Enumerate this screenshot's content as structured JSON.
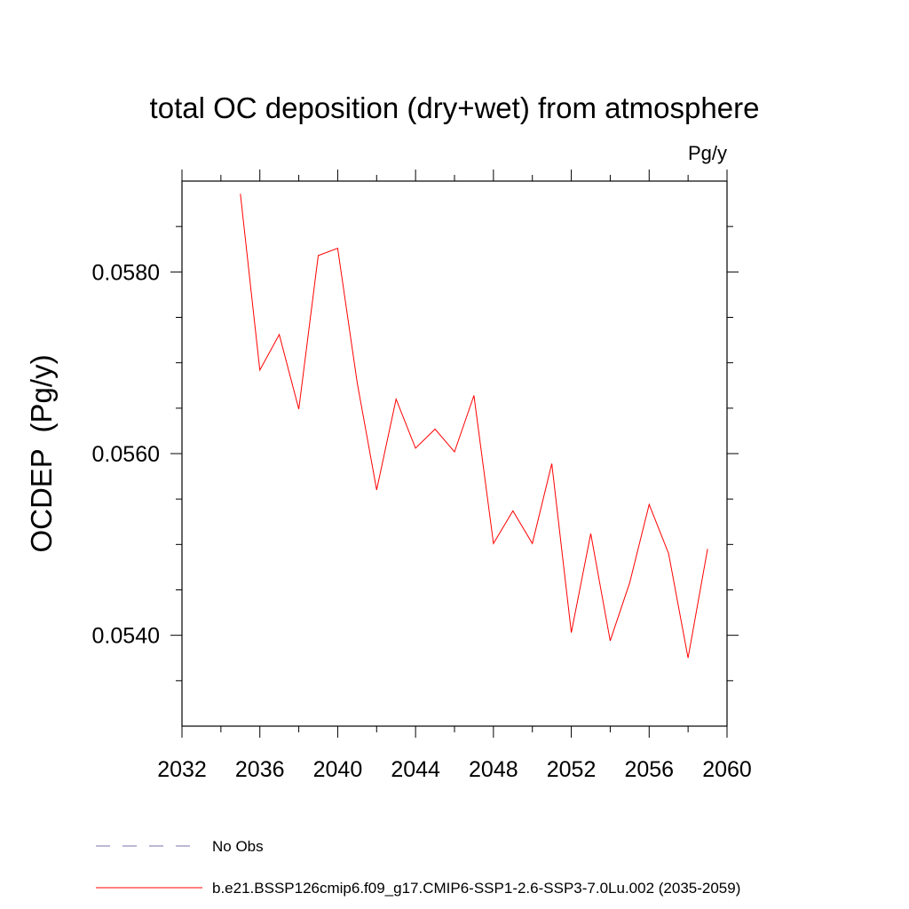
{
  "chart_data": {
    "type": "line",
    "title": "total OC deposition (dry+wet) from atmosphere",
    "units_label": "Pg/y",
    "xlabel": "",
    "ylabel": "OCDEP  (Pg/y)",
    "xlim": [
      2032,
      2060
    ],
    "ylim": [
      0.053,
      0.059
    ],
    "xticks": [
      2032,
      2036,
      2040,
      2044,
      2048,
      2052,
      2056,
      2060
    ],
    "xtick_labels": [
      "2032",
      "2036",
      "2040",
      "2044",
      "2048",
      "2052",
      "2056",
      "2060"
    ],
    "yticks": [
      0.054,
      0.056,
      0.058
    ],
    "ytick_labels": [
      "0.0540",
      "0.0560",
      "0.0580"
    ],
    "grid": false,
    "series": [
      {
        "name": "b.e21.BSSP126cmip6.f09_g17.CMIP6-SSP1-2.6-SSP3-7.0Lu.002 (2035-2059)",
        "color": "#ff0000",
        "style": "solid",
        "x": [
          2035,
          2036,
          2037,
          2038,
          2039,
          2040,
          2041,
          2042,
          2043,
          2044,
          2045,
          2046,
          2047,
          2048,
          2049,
          2050,
          2051,
          2052,
          2053,
          2054,
          2055,
          2056,
          2057,
          2058,
          2059
        ],
        "values": [
          0.05886,
          0.05692,
          0.05731,
          0.05649,
          0.05818,
          0.05826,
          0.05678,
          0.0556,
          0.0566,
          0.05606,
          0.05627,
          0.05602,
          0.05664,
          0.05501,
          0.05537,
          0.05501,
          0.05589,
          0.05403,
          0.05512,
          0.05394,
          0.05458,
          0.05544,
          0.0549,
          0.05375,
          0.05495
        ]
      }
    ],
    "legend": {
      "placement": "bottom-left",
      "entries": [
        {
          "label": "No Obs",
          "color": "#7b6fae",
          "style": "dashed"
        },
        {
          "label": "b.e21.BSSP126cmip6.f09_g17.CMIP6-SSP1-2.6-SSP3-7.0Lu.002 (2035-2059)",
          "color": "#ff0000",
          "style": "solid"
        }
      ]
    }
  }
}
